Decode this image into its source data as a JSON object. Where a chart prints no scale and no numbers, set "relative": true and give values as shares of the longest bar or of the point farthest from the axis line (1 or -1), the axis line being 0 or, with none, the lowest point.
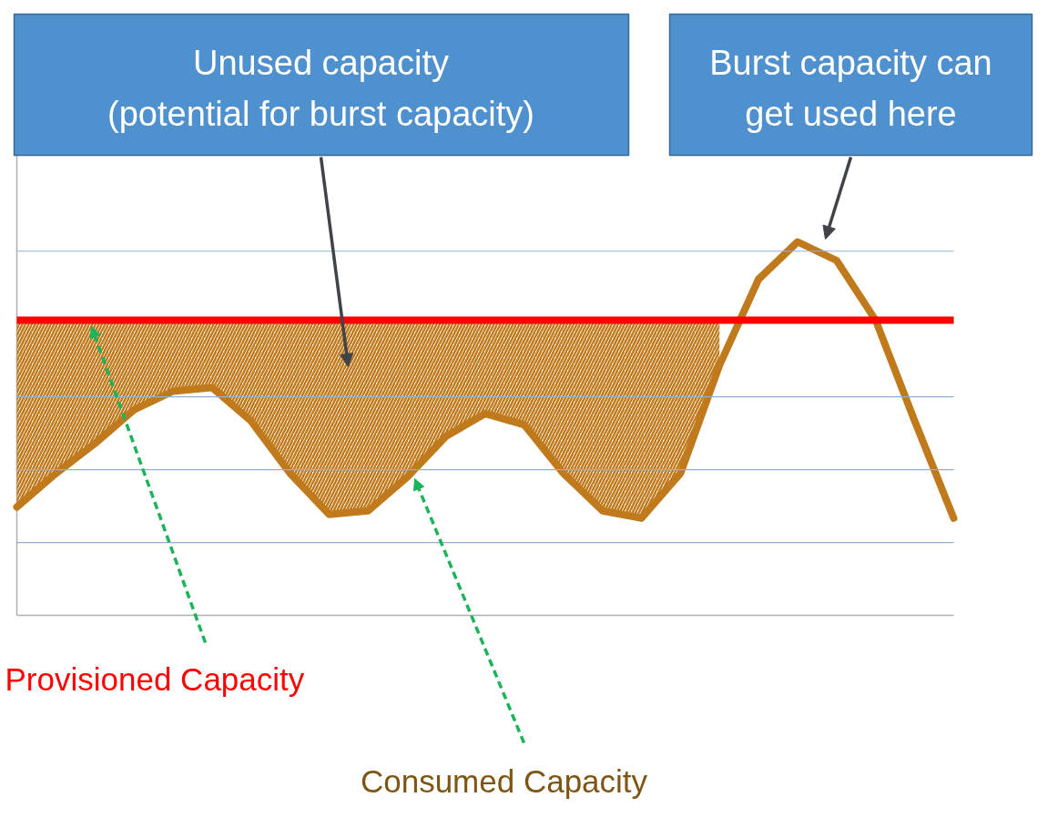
{
  "chart_data": {
    "type": "line",
    "relative": true,
    "categories": [
      null,
      null,
      null,
      null,
      null,
      null,
      null,
      null,
      null,
      null,
      null,
      null,
      null,
      null,
      null,
      null,
      null,
      null,
      null,
      null,
      null,
      null,
      null,
      null,
      null
    ],
    "series": [
      {
        "name": "Consumed Capacity",
        "color": "#c07a1c",
        "values": [
          0.29,
          0.38,
          0.46,
          0.55,
          0.6,
          0.61,
          0.52,
          0.38,
          0.27,
          0.28,
          0.37,
          0.48,
          0.54,
          0.51,
          0.38,
          0.28,
          0.26,
          0.38,
          0.67,
          0.9,
          1,
          0.95,
          0.79,
          0.52,
          0.26
        ],
        "lower": [
          0.29,
          0.38,
          0.46,
          0.55,
          0.6,
          0.61,
          0.52,
          0.38,
          0.27,
          0.28,
          0.37,
          0.48,
          0.54,
          0.51,
          0.38,
          0.28,
          0.26,
          0.38,
          0.67,
          null,
          null,
          null,
          null,
          null,
          null
        ],
        "upper": [
          0.79,
          0.79,
          0.79,
          0.79,
          0.79,
          0.79,
          0.79,
          0.79,
          0.79,
          0.79,
          0.79,
          0.79,
          0.79,
          0.79,
          0.79,
          0.79,
          0.79,
          0.79,
          0.79,
          null,
          null,
          null,
          null,
          null,
          null
        ]
      }
    ],
    "ref_lines": [
      {
        "axis": "y",
        "value": 0.195,
        "color": "#8fb1d9"
      },
      {
        "axis": "y",
        "value": 0.39,
        "color": "#8fb1d9"
      },
      {
        "axis": "y",
        "value": 0.585,
        "color": "#8fb1d9"
      },
      {
        "axis": "y",
        "value": 0.975,
        "color": "#8fb1d9"
      },
      {
        "axis": "y",
        "value": 0.79,
        "label": "Provisioned Capacity",
        "color": "#ff0000"
      }
    ],
    "annotations": [
      "Unused capacity\n(potential for burst capacity)",
      "Burst capacity can\nget used here"
    ],
    "line_style": "solid"
  }
}
